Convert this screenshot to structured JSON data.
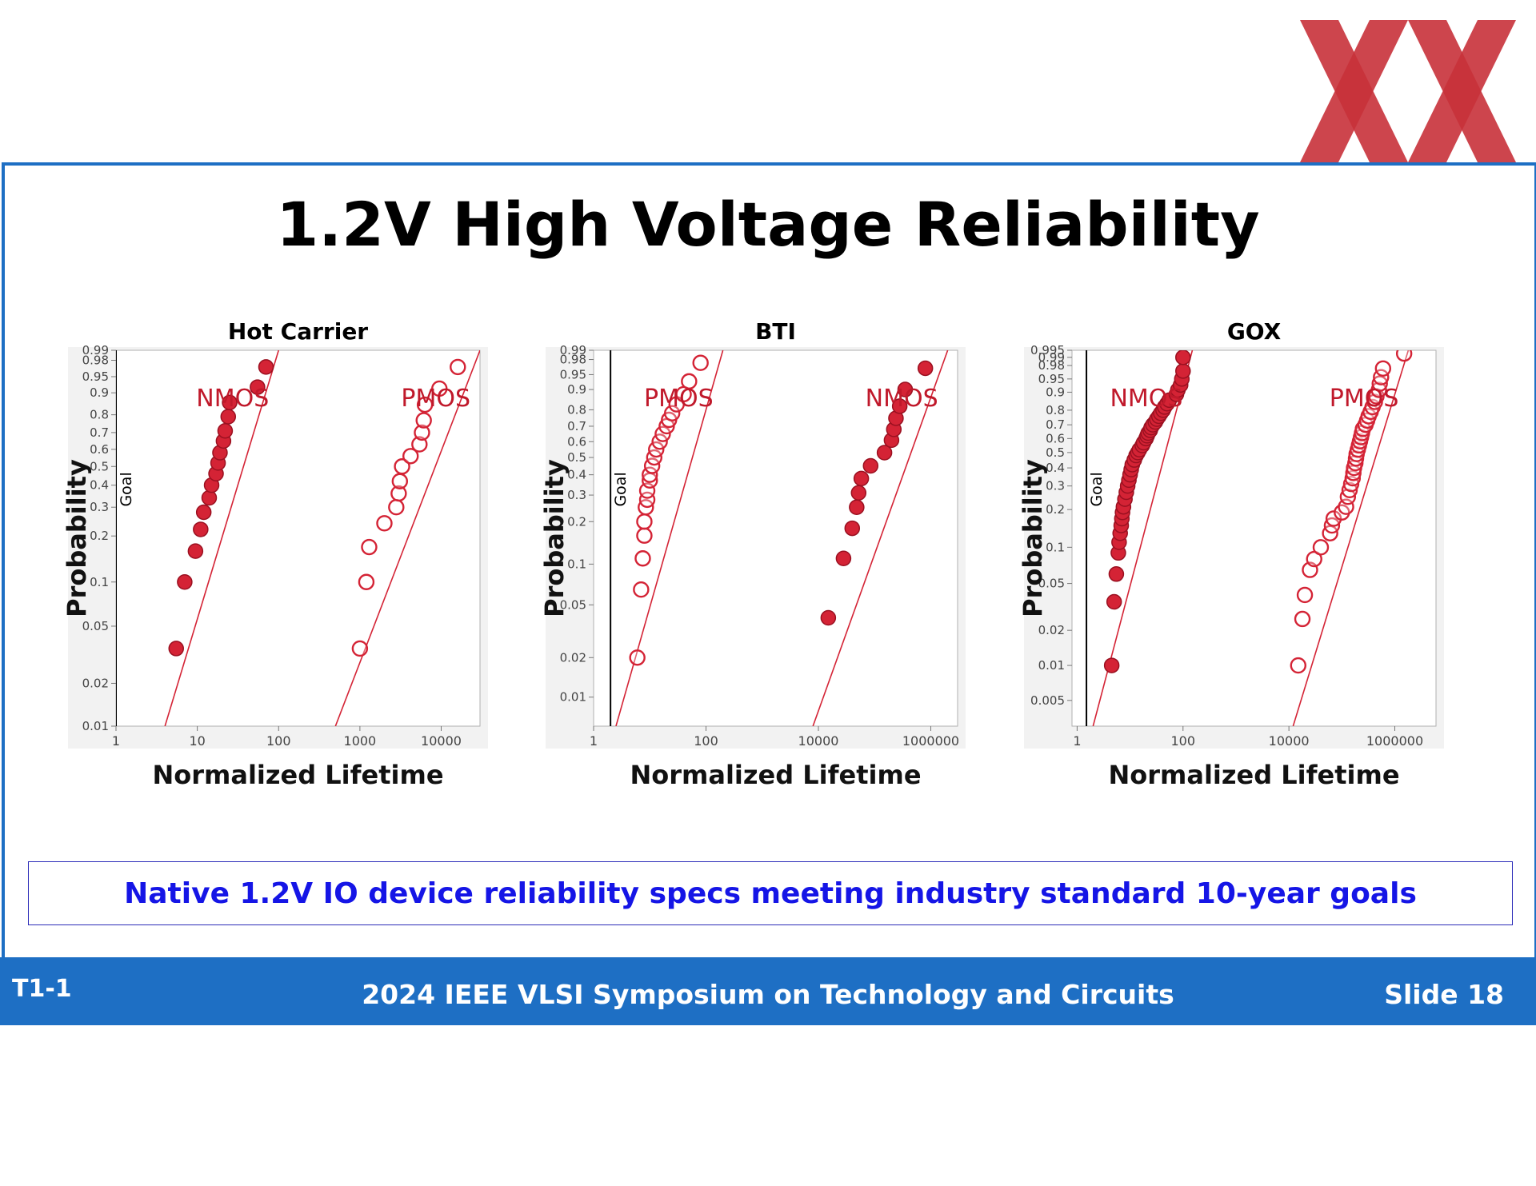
{
  "slide": {
    "title": "1.2V High Voltage Reliability",
    "summary": "Native 1.2V IO device reliability specs meeting industry standard 10-year goals"
  },
  "footer": {
    "left": "T1-1",
    "center": "2024 IEEE VLSI Symposium on Technology and Circuits",
    "right": "Slide 18"
  },
  "colors": {
    "accent_blue": "#1e6fc4",
    "logo_red": "#c8313a",
    "series_red": "#d42335",
    "summary_text": "#1515e6"
  },
  "chart_data": [
    {
      "type": "scatter",
      "title": "Hot Carrier",
      "xlabel": "Normalized Lifetime",
      "ylabel": "Probability",
      "x_scale": "log",
      "y_scale": "weibull-probability",
      "xlim": [
        1,
        30000
      ],
      "ylim": [
        0.01,
        0.99
      ],
      "x_ticks": [
        {
          "v": 1,
          "label": "1"
        },
        {
          "v": 10,
          "label": "10"
        },
        {
          "v": 100,
          "label": "100"
        },
        {
          "v": 1000,
          "label": "1000"
        },
        {
          "v": 10000,
          "label": "10000"
        }
      ],
      "y_ticks": [
        {
          "v": 0.01,
          "label": "0.01"
        },
        {
          "v": 0.02,
          "label": "0.02"
        },
        {
          "v": 0.05,
          "label": "0.05"
        },
        {
          "v": 0.1,
          "label": "0.1"
        },
        {
          "v": 0.2,
          "label": "0.2"
        },
        {
          "v": 0.3,
          "label": "0.3"
        },
        {
          "v": 0.4,
          "label": "0.4"
        },
        {
          "v": 0.5,
          "label": "0.5"
        },
        {
          "v": 0.6,
          "label": "0.6"
        },
        {
          "v": 0.7,
          "label": "0.7"
        },
        {
          "v": 0.8,
          "label": "0.8"
        },
        {
          "v": 0.9,
          "label": "0.9"
        },
        {
          "v": 0.95,
          "label": "0.95"
        },
        {
          "v": 0.98,
          "label": "0.98"
        },
        {
          "v": 0.99,
          "label": "0.99"
        }
      ],
      "goal": {
        "x": 1,
        "label": "Goal"
      },
      "series": [
        {
          "name": "NMOS",
          "filled": true,
          "fit": [
            [
              4,
              0.01
            ],
            [
              100,
              0.99
            ]
          ],
          "points": [
            [
              5.5,
              0.035
            ],
            [
              7,
              0.1
            ],
            [
              9.5,
              0.16
            ],
            [
              11,
              0.22
            ],
            [
              12,
              0.28
            ],
            [
              14,
              0.34
            ],
            [
              15,
              0.4
            ],
            [
              17,
              0.46
            ],
            [
              18,
              0.52
            ],
            [
              19,
              0.58
            ],
            [
              21,
              0.65
            ],
            [
              22,
              0.71
            ],
            [
              24,
              0.79
            ],
            [
              25,
              0.86
            ],
            [
              55,
              0.92
            ],
            [
              70,
              0.97
            ]
          ]
        },
        {
          "name": "PMOS",
          "filled": false,
          "fit": [
            [
              500,
              0.01
            ],
            [
              30000,
              0.99
            ]
          ],
          "points": [
            [
              1000,
              0.035
            ],
            [
              1200,
              0.1
            ],
            [
              1300,
              0.17
            ],
            [
              2000,
              0.24
            ],
            [
              2800,
              0.3
            ],
            [
              3000,
              0.36
            ],
            [
              3100,
              0.42
            ],
            [
              3300,
              0.5
            ],
            [
              4200,
              0.56
            ],
            [
              5400,
              0.63
            ],
            [
              5800,
              0.7
            ],
            [
              6100,
              0.77
            ],
            [
              6300,
              0.85
            ],
            [
              9500,
              0.915
            ],
            [
              16000,
              0.97
            ]
          ]
        }
      ]
    },
    {
      "type": "scatter",
      "title": "BTI",
      "xlabel": "Normalized Lifetime",
      "ylabel": "Probability",
      "x_scale": "log",
      "y_scale": "weibull-probability",
      "xlim": [
        1,
        3000000
      ],
      "ylim": [
        0.006,
        0.99
      ],
      "x_ticks": [
        {
          "v": 1,
          "label": "1"
        },
        {
          "v": 100,
          "label": "100"
        },
        {
          "v": 10000,
          "label": "10000"
        },
        {
          "v": 1000000,
          "label": "1000000"
        }
      ],
      "y_ticks": [
        {
          "v": 0.01,
          "label": "0.01"
        },
        {
          "v": 0.02,
          "label": "0.02"
        },
        {
          "v": 0.05,
          "label": "0.05"
        },
        {
          "v": 0.1,
          "label": "0.1"
        },
        {
          "v": 0.2,
          "label": "0.2"
        },
        {
          "v": 0.3,
          "label": "0.3"
        },
        {
          "v": 0.4,
          "label": "0.4"
        },
        {
          "v": 0.5,
          "label": "0.5"
        },
        {
          "v": 0.6,
          "label": "0.6"
        },
        {
          "v": 0.7,
          "label": "0.7"
        },
        {
          "v": 0.8,
          "label": "0.8"
        },
        {
          "v": 0.9,
          "label": "0.9"
        },
        {
          "v": 0.95,
          "label": "0.95"
        },
        {
          "v": 0.98,
          "label": "0.98"
        },
        {
          "v": 0.99,
          "label": "0.99"
        }
      ],
      "goal": {
        "x": 2,
        "label": "Goal"
      },
      "series": [
        {
          "name": "PMOS",
          "filled": false,
          "fit": [
            [
              2.5,
              0.006
            ],
            [
              200,
              0.99
            ]
          ],
          "points": [
            [
              6,
              0.02
            ],
            [
              7,
              0.065
            ],
            [
              7.5,
              0.11
            ],
            [
              8,
              0.16
            ],
            [
              8,
              0.2
            ],
            [
              8.5,
              0.25
            ],
            [
              9,
              0.28
            ],
            [
              9,
              0.32
            ],
            [
              10,
              0.37
            ],
            [
              10,
              0.4
            ],
            [
              11,
              0.45
            ],
            [
              12,
              0.5
            ],
            [
              13,
              0.55
            ],
            [
              15,
              0.6
            ],
            [
              17,
              0.65
            ],
            [
              20,
              0.7
            ],
            [
              22,
              0.74
            ],
            [
              25,
              0.78
            ],
            [
              30,
              0.83
            ],
            [
              40,
              0.88
            ],
            [
              50,
              0.93
            ],
            [
              80,
              0.975
            ]
          ]
        },
        {
          "name": "NMOS",
          "filled": true,
          "fit": [
            [
              8000,
              0.006
            ],
            [
              2000000,
              0.99
            ]
          ],
          "points": [
            [
              15000,
              0.04
            ],
            [
              28000,
              0.11
            ],
            [
              40000,
              0.18
            ],
            [
              48000,
              0.25
            ],
            [
              52000,
              0.31
            ],
            [
              58000,
              0.38
            ],
            [
              85000,
              0.45
            ],
            [
              150000,
              0.53
            ],
            [
              200000,
              0.61
            ],
            [
              220000,
              0.68
            ],
            [
              240000,
              0.75
            ],
            [
              280000,
              0.82
            ],
            [
              350000,
              0.9
            ],
            [
              800000,
              0.965
            ]
          ]
        }
      ]
    },
    {
      "type": "scatter",
      "title": "GOX",
      "xlabel": "Normalized Lifetime",
      "ylabel": "Probability",
      "x_scale": "log",
      "y_scale": "weibull-probability",
      "xlim": [
        0.8,
        6000000
      ],
      "ylim": [
        0.003,
        0.995
      ],
      "x_ticks": [
        {
          "v": 1,
          "label": "1"
        },
        {
          "v": 100,
          "label": "100"
        },
        {
          "v": 10000,
          "label": "10000"
        },
        {
          "v": 1000000,
          "label": "1000000"
        }
      ],
      "y_ticks": [
        {
          "v": 0.005,
          "label": "0.005"
        },
        {
          "v": 0.01,
          "label": "0.01"
        },
        {
          "v": 0.02,
          "label": "0.02"
        },
        {
          "v": 0.05,
          "label": "0.05"
        },
        {
          "v": 0.1,
          "label": "0.1"
        },
        {
          "v": 0.2,
          "label": "0.2"
        },
        {
          "v": 0.3,
          "label": "0.3"
        },
        {
          "v": 0.4,
          "label": "0.4"
        },
        {
          "v": 0.5,
          "label": "0.5"
        },
        {
          "v": 0.6,
          "label": "0.6"
        },
        {
          "v": 0.7,
          "label": "0.7"
        },
        {
          "v": 0.8,
          "label": "0.8"
        },
        {
          "v": 0.9,
          "label": "0.9"
        },
        {
          "v": 0.95,
          "label": "0.95"
        },
        {
          "v": 0.98,
          "label": "0.98"
        },
        {
          "v": 0.99,
          "label": "0.99"
        },
        {
          "v": 0.995,
          "label": "0.995"
        }
      ],
      "goal": {
        "x": 1.5,
        "label": "Goal"
      },
      "series": [
        {
          "name": "NMOS",
          "filled": true,
          "fit": [
            [
              2,
              0.003
            ],
            [
              150,
              0.995
            ]
          ],
          "points": [
            [
              4.5,
              0.01
            ],
            [
              5,
              0.035
            ],
            [
              5.5,
              0.06
            ],
            [
              6,
              0.09
            ],
            [
              6.2,
              0.11
            ],
            [
              6.5,
              0.13
            ],
            [
              6.8,
              0.15
            ],
            [
              7,
              0.17
            ],
            [
              7.2,
              0.19
            ],
            [
              7.5,
              0.21
            ],
            [
              8,
              0.24
            ],
            [
              8.5,
              0.27
            ],
            [
              9,
              0.3
            ],
            [
              9.5,
              0.33
            ],
            [
              10,
              0.36
            ],
            [
              10.5,
              0.39
            ],
            [
              11,
              0.42
            ],
            [
              12,
              0.45
            ],
            [
              13,
              0.48
            ],
            [
              14,
              0.5
            ],
            [
              15,
              0.52
            ],
            [
              17,
              0.55
            ],
            [
              18,
              0.57
            ],
            [
              20,
              0.6
            ],
            [
              21,
              0.62
            ],
            [
              22,
              0.64
            ],
            [
              24,
              0.66
            ],
            [
              25,
              0.68
            ],
            [
              27,
              0.7
            ],
            [
              30,
              0.72
            ],
            [
              32,
              0.74
            ],
            [
              35,
              0.76
            ],
            [
              38,
              0.78
            ],
            [
              42,
              0.8
            ],
            [
              45,
              0.82
            ],
            [
              50,
              0.84
            ],
            [
              55,
              0.86
            ],
            [
              75,
              0.89
            ],
            [
              80,
              0.91
            ],
            [
              90,
              0.93
            ],
            [
              95,
              0.95
            ],
            [
              100,
              0.97
            ],
            [
              100,
              0.99
            ]
          ]
        },
        {
          "name": "PMOS",
          "filled": false,
          "fit": [
            [
              12000,
              0.003
            ],
            [
              1800000,
              0.995
            ]
          ],
          "points": [
            [
              15000,
              0.01
            ],
            [
              18000,
              0.025
            ],
            [
              20000,
              0.04
            ],
            [
              25000,
              0.065
            ],
            [
              30000,
              0.08
            ],
            [
              40000,
              0.1
            ],
            [
              60000,
              0.13
            ],
            [
              65000,
              0.15
            ],
            [
              70000,
              0.17
            ],
            [
              100000,
              0.19
            ],
            [
              120000,
              0.21
            ],
            [
              130000,
              0.25
            ],
            [
              140000,
              0.28
            ],
            [
              150000,
              0.31
            ],
            [
              160000,
              0.34
            ],
            [
              165000,
              0.37
            ],
            [
              170000,
              0.4
            ],
            [
              180000,
              0.43
            ],
            [
              185000,
              0.46
            ],
            [
              190000,
              0.49
            ],
            [
              200000,
              0.52
            ],
            [
              210000,
              0.55
            ],
            [
              220000,
              0.58
            ],
            [
              230000,
              0.61
            ],
            [
              240000,
              0.64
            ],
            [
              250000,
              0.67
            ],
            [
              280000,
              0.7
            ],
            [
              300000,
              0.73
            ],
            [
              320000,
              0.76
            ],
            [
              350000,
              0.79
            ],
            [
              380000,
              0.82
            ],
            [
              420000,
              0.85
            ],
            [
              450000,
              0.88
            ],
            [
              500000,
              0.91
            ],
            [
              520000,
              0.935
            ],
            [
              550000,
              0.955
            ],
            [
              600000,
              0.975
            ],
            [
              1500000,
              0.993
            ]
          ]
        }
      ]
    }
  ]
}
